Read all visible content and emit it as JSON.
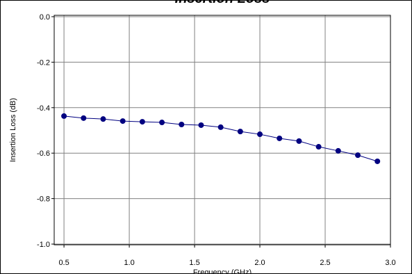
{
  "chart_data": {
    "type": "line",
    "title": "Insertion Loss",
    "x_label": "Frequency (GHz)",
    "y_label": "Insertion Loss (dB)",
    "series": [
      {
        "name": "Insertion Loss",
        "color": "#000080",
        "x": [
          0.5,
          0.65,
          0.8,
          0.95,
          1.1,
          1.25,
          1.4,
          1.55,
          1.7,
          1.85,
          2.0,
          2.15,
          2.3,
          2.45,
          2.6,
          2.75,
          2.9
        ],
        "values": [
          -0.437,
          -0.446,
          -0.45,
          -0.459,
          -0.462,
          -0.465,
          -0.474,
          -0.477,
          -0.486,
          -0.505,
          -0.517,
          -0.535,
          -0.547,
          -0.572,
          -0.59,
          -0.609,
          -0.636
        ]
      }
    ],
    "xlim": [
      0.425,
      3.0
    ],
    "ylim": [
      -1.0,
      0.0
    ],
    "xticks": [
      0.5,
      {
        "value": 1.0,
        "label": "1.0"
      },
      1.5,
      {
        "value": 2.0,
        "label": "2.0"
      },
      2.5,
      {
        "value": 3.0,
        "label": "3.0"
      }
    ],
    "yticks": [
      {
        "value": 0.0,
        "label": "0.0"
      },
      -0.2,
      -0.4,
      -0.6,
      -0.8,
      {
        "value": -1.0,
        "label": "-1.0"
      }
    ],
    "grid": true
  }
}
